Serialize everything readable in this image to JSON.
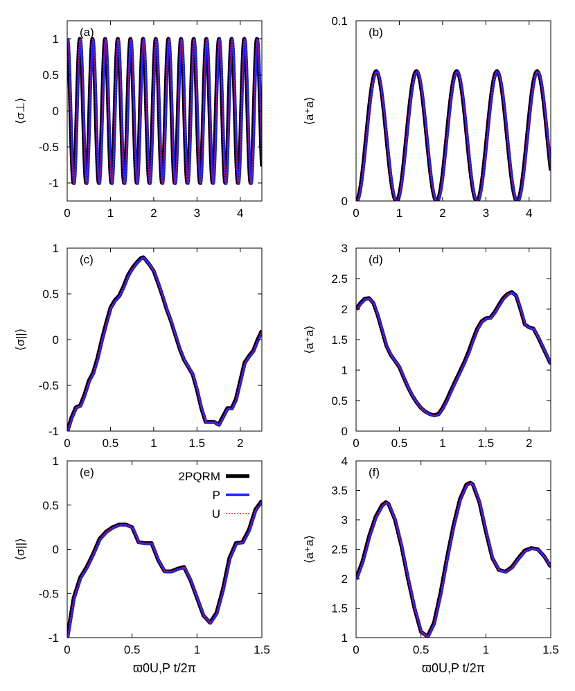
{
  "chart_data": [
    {
      "panel": "(a)",
      "type": "line",
      "ylabel": "⟨σ⊥⟩",
      "xlabel": "",
      "xlim": [
        0,
        4.5
      ],
      "ylim": [
        -1.25,
        1.25
      ],
      "xticks": [
        "0",
        "1",
        "2",
        "3",
        "4"
      ],
      "yticks": [
        "-1",
        "-0.5",
        "0",
        "0.5",
        "1"
      ],
      "curve": {
        "kind": "cos",
        "amp": 1,
        "freq": 3.42
      },
      "series": [
        {
          "name": "2PQRM",
          "color": "#000000",
          "style": "thick-solid"
        },
        {
          "name": "P",
          "color": "#1a1aff",
          "style": "solid"
        },
        {
          "name": "U",
          "color": "#e41a1c",
          "style": "dotted"
        }
      ]
    },
    {
      "panel": "(b)",
      "type": "line",
      "ylabel": "⟨a⁺a⟩",
      "xlabel": "",
      "xlim": [
        0,
        4.5
      ],
      "ylim": [
        0,
        0.1
      ],
      "xticks": [
        "0",
        "1",
        "2",
        "3",
        "4"
      ],
      "yticks": [
        "0",
        "0.1"
      ],
      "curve": {
        "kind": "cos2",
        "amp": 0.072,
        "period": 0.93
      },
      "series": [
        {
          "name": "2PQRM",
          "color": "#000000",
          "style": "thick-solid"
        },
        {
          "name": "P",
          "color": "#1a1aff",
          "style": "solid"
        },
        {
          "name": "U",
          "color": "#e41a1c",
          "style": "dotted"
        }
      ]
    },
    {
      "panel": "(c)",
      "type": "line",
      "ylabel": "⟨σ||⟩",
      "xlabel": "",
      "xlim": [
        0,
        2.25
      ],
      "ylim": [
        -1,
        1
      ],
      "xticks": [
        "0",
        "0.5",
        "1",
        "1.5",
        "2"
      ],
      "yticks": [
        "-1",
        "-0.5",
        "0",
        "0.5",
        "1"
      ],
      "x": [
        0,
        0.05,
        0.1,
        0.15,
        0.2,
        0.25,
        0.3,
        0.35,
        0.4,
        0.45,
        0.5,
        0.55,
        0.6,
        0.65,
        0.7,
        0.75,
        0.8,
        0.85,
        0.88,
        0.9,
        0.95,
        1.0,
        1.05,
        1.1,
        1.15,
        1.2,
        1.25,
        1.3,
        1.35,
        1.4,
        1.45,
        1.5,
        1.55,
        1.6,
        1.65,
        1.7,
        1.75,
        1.8,
        1.85,
        1.9,
        1.95,
        2.0,
        2.05,
        2.1,
        2.15,
        2.2,
        2.25
      ],
      "values": [
        -1.0,
        -0.85,
        -0.74,
        -0.72,
        -0.6,
        -0.45,
        -0.36,
        -0.2,
        0.0,
        0.18,
        0.35,
        0.43,
        0.48,
        0.58,
        0.7,
        0.78,
        0.84,
        0.89,
        0.9,
        0.88,
        0.82,
        0.75,
        0.62,
        0.48,
        0.33,
        0.2,
        0.05,
        -0.1,
        -0.22,
        -0.3,
        -0.38,
        -0.55,
        -0.75,
        -0.9,
        -0.9,
        -0.9,
        -0.93,
        -0.84,
        -0.75,
        -0.75,
        -0.65,
        -0.45,
        -0.25,
        -0.18,
        -0.12,
        0.0,
        0.1
      ],
      "series": [
        {
          "name": "2PQRM",
          "color": "#000000",
          "style": "thick-solid"
        },
        {
          "name": "P",
          "color": "#1a1aff",
          "style": "solid"
        },
        {
          "name": "U",
          "color": "#e41a1c",
          "style": "dotted"
        }
      ]
    },
    {
      "panel": "(d)",
      "type": "line",
      "ylabel": "⟨a⁺a⟩",
      "xlabel": "",
      "xlim": [
        0,
        2.25
      ],
      "ylim": [
        0,
        3
      ],
      "xticks": [
        "0",
        "0.5",
        "1",
        "1.5",
        "2"
      ],
      "yticks": [
        "0",
        "0.5",
        "1",
        "1.5",
        "2",
        "2.5",
        "3"
      ],
      "x": [
        0,
        0.05,
        0.1,
        0.15,
        0.2,
        0.25,
        0.3,
        0.35,
        0.4,
        0.45,
        0.5,
        0.55,
        0.6,
        0.65,
        0.7,
        0.75,
        0.8,
        0.85,
        0.9,
        0.95,
        1.0,
        1.05,
        1.1,
        1.15,
        1.2,
        1.25,
        1.3,
        1.35,
        1.4,
        1.45,
        1.5,
        1.55,
        1.6,
        1.65,
        1.7,
        1.75,
        1.8,
        1.85,
        1.9,
        1.95,
        2.0,
        2.05,
        2.1,
        2.15,
        2.2,
        2.25
      ],
      "values": [
        2.0,
        2.1,
        2.17,
        2.18,
        2.1,
        1.9,
        1.65,
        1.4,
        1.25,
        1.15,
        1.05,
        0.88,
        0.72,
        0.58,
        0.47,
        0.38,
        0.32,
        0.28,
        0.26,
        0.28,
        0.38,
        0.52,
        0.68,
        0.83,
        0.98,
        1.13,
        1.3,
        1.5,
        1.68,
        1.8,
        1.85,
        1.86,
        1.95,
        2.07,
        2.18,
        2.25,
        2.28,
        2.22,
        2.0,
        1.75,
        1.7,
        1.68,
        1.55,
        1.4,
        1.25,
        1.1
      ],
      "series": [
        {
          "name": "2PQRM",
          "color": "#000000",
          "style": "thick-solid"
        },
        {
          "name": "P",
          "color": "#1a1aff",
          "style": "solid"
        },
        {
          "name": "U",
          "color": "#e41a1c",
          "style": "dotted"
        }
      ]
    },
    {
      "panel": "(e)",
      "type": "line",
      "ylabel": "⟨σ||⟩",
      "xlabel": "ϖ0U,P t/2π",
      "xlim": [
        0,
        1.5
      ],
      "ylim": [
        -1,
        1
      ],
      "xticks": [
        "0",
        "0.5",
        "1",
        "1.5"
      ],
      "yticks": [
        "-1",
        "-0.5",
        "0",
        "0.5",
        "1"
      ],
      "legend": [
        "2PQRM",
        "P",
        "U"
      ],
      "x": [
        0,
        0.05,
        0.1,
        0.15,
        0.2,
        0.25,
        0.3,
        0.35,
        0.4,
        0.45,
        0.5,
        0.55,
        0.6,
        0.65,
        0.7,
        0.75,
        0.8,
        0.85,
        0.9,
        0.95,
        1.0,
        1.05,
        1.1,
        1.15,
        1.2,
        1.25,
        1.3,
        1.35,
        1.4,
        1.45,
        1.5
      ],
      "values": [
        -1.0,
        -0.55,
        -0.32,
        -0.2,
        -0.05,
        0.12,
        0.2,
        0.25,
        0.28,
        0.28,
        0.25,
        0.08,
        0.07,
        0.07,
        -0.12,
        -0.25,
        -0.25,
        -0.22,
        -0.2,
        -0.35,
        -0.55,
        -0.75,
        -0.83,
        -0.72,
        -0.45,
        -0.1,
        0.07,
        0.08,
        0.22,
        0.45,
        0.55
      ],
      "series": [
        {
          "name": "2PQRM",
          "color": "#000000",
          "style": "thick-solid"
        },
        {
          "name": "P",
          "color": "#1a1aff",
          "style": "solid"
        },
        {
          "name": "U",
          "color": "#e41a1c",
          "style": "dotted"
        }
      ]
    },
    {
      "panel": "(f)",
      "type": "line",
      "ylabel": "⟨a⁺a⟩",
      "xlabel": "ϖ0U,P t/2π",
      "xlim": [
        0,
        1.5
      ],
      "ylim": [
        1,
        4
      ],
      "xticks": [
        "0",
        "0.5",
        "1",
        "1.5"
      ],
      "yticks": [
        "1",
        "1.5",
        "2",
        "2.5",
        "3",
        "3.5",
        "4"
      ],
      "x": [
        0,
        0.05,
        0.1,
        0.15,
        0.2,
        0.23,
        0.25,
        0.3,
        0.35,
        0.4,
        0.45,
        0.5,
        0.55,
        0.6,
        0.65,
        0.7,
        0.75,
        0.8,
        0.85,
        0.88,
        0.9,
        0.95,
        1.0,
        1.05,
        1.1,
        1.15,
        1.2,
        1.25,
        1.3,
        1.35,
        1.4,
        1.45,
        1.5
      ],
      "values": [
        2.0,
        2.3,
        2.72,
        3.05,
        3.25,
        3.3,
        3.27,
        3.0,
        2.55,
        2.0,
        1.5,
        1.1,
        1.02,
        1.25,
        1.75,
        2.35,
        2.9,
        3.35,
        3.6,
        3.63,
        3.6,
        3.3,
        2.8,
        2.35,
        2.15,
        2.12,
        2.2,
        2.35,
        2.48,
        2.52,
        2.5,
        2.38,
        2.2
      ],
      "series": [
        {
          "name": "2PQRM",
          "color": "#000000",
          "style": "thick-solid"
        },
        {
          "name": "P",
          "color": "#1a1aff",
          "style": "solid"
        },
        {
          "name": "U",
          "color": "#e41a1c",
          "style": "dotted"
        }
      ]
    }
  ]
}
